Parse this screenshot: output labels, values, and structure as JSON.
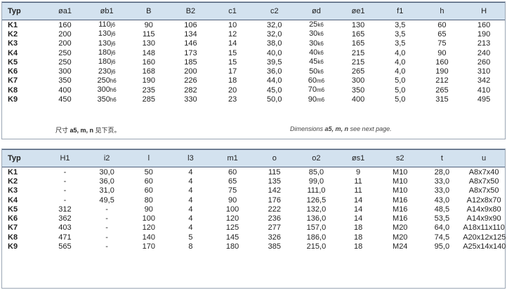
{
  "table1": {
    "headers": [
      "Typ",
      "øa1",
      "øb1",
      "B",
      "B2",
      "c1",
      "c2",
      "ød",
      "øe1",
      "f1",
      "h",
      "H"
    ],
    "rows": [
      {
        "type": "K1",
        "cells": [
          "160",
          {
            "main": "110",
            "sub": "j6"
          },
          "90",
          "106",
          "10",
          "32,0",
          {
            "main": "25",
            "sub": "k6"
          },
          "130",
          "3,5",
          "60",
          "160"
        ]
      },
      {
        "type": "K2",
        "cells": [
          "200",
          {
            "main": "130",
            "sub": "j6"
          },
          "115",
          "134",
          "12",
          "32,0",
          {
            "main": "30",
            "sub": "k6"
          },
          "165",
          "3,5",
          "65",
          "190"
        ]
      },
      {
        "type": "K3",
        "cells": [
          "200",
          {
            "main": "130",
            "sub": "j6"
          },
          "130",
          "146",
          "14",
          "38,0",
          {
            "main": "30",
            "sub": "k6"
          },
          "165",
          "3,5",
          "75",
          "213"
        ]
      },
      {
        "type": "K4",
        "cells": [
          "250",
          {
            "main": "180",
            "sub": "j6"
          },
          "148",
          "173",
          "15",
          "40,0",
          {
            "main": "40",
            "sub": "k6"
          },
          "215",
          "4,0",
          "90",
          "240"
        ]
      },
      {
        "type": "K5",
        "cells": [
          "250",
          {
            "main": "180",
            "sub": "j6"
          },
          "160",
          "185",
          "15",
          "39,5",
          {
            "main": "45",
            "sub": "k6"
          },
          "215",
          "4,0",
          "160",
          "260"
        ]
      },
      {
        "type": "K6",
        "cells": [
          "300",
          {
            "main": "230",
            "sub": "j6"
          },
          "168",
          "200",
          "17",
          "36,0",
          {
            "main": "50",
            "sub": "k6"
          },
          "265",
          "4,0",
          "190",
          "310"
        ]
      },
      {
        "type": "K7",
        "cells": [
          "350",
          {
            "main": "250",
            "sub": "h6"
          },
          "190",
          "226",
          "18",
          "44,0",
          {
            "main": "60",
            "sub": "m6"
          },
          "300",
          "5,0",
          "212",
          "342"
        ]
      },
      {
        "type": "K8",
        "cells": [
          "400",
          {
            "main": "300",
            "sub": "h6"
          },
          "235",
          "282",
          "20",
          "45,0",
          {
            "main": "70",
            "sub": "m6"
          },
          "350",
          "5,0",
          "265",
          "410"
        ]
      },
      {
        "type": "K9",
        "cells": [
          "450",
          {
            "main": "350",
            "sub": "h6"
          },
          "285",
          "330",
          "23",
          "50,0",
          {
            "main": "90",
            "sub": "m6"
          },
          "400",
          "5,0",
          "315",
          "495"
        ]
      }
    ],
    "note_cn": [
      {
        "text": "尺寸 "
      },
      {
        "text": "a5, m, n",
        "bold": true
      },
      {
        "text": " 见下页。"
      }
    ],
    "note_en": [
      {
        "text": "Dimensions "
      },
      {
        "text": "a5, m, n",
        "bold": true
      },
      {
        "text": " see next page."
      }
    ]
  },
  "table2": {
    "headers": [
      "Typ",
      "H1",
      "i2",
      "l",
      "l3",
      "m1",
      "o",
      "o2",
      "øs1",
      "s2",
      "t",
      "u"
    ],
    "rows": [
      {
        "type": "K1",
        "cells": [
          "-",
          "30,0",
          "50",
          "4",
          "60",
          "115",
          "85,0",
          "9",
          "M10",
          "28,0",
          "A8x7x40"
        ]
      },
      {
        "type": "K2",
        "cells": [
          "-",
          "36,0",
          "60",
          "4",
          "65",
          "135",
          "99,0",
          "11",
          "M10",
          "33,0",
          "A8x7x50"
        ]
      },
      {
        "type": "K3",
        "cells": [
          "-",
          "31,0",
          "60",
          "4",
          "75",
          "142",
          "111,0",
          "11",
          "M10",
          "33,0",
          "A8x7x50"
        ]
      },
      {
        "type": "K4",
        "cells": [
          "-",
          "49,5",
          "80",
          "4",
          "90",
          "176",
          "126,5",
          "14",
          "M16",
          "43,0",
          "A12x8x70"
        ]
      },
      {
        "type": "K5",
        "cells": [
          "312",
          "-",
          "90",
          "4",
          "100",
          "222",
          "132,0",
          "14",
          "M16",
          "48,5",
          "A14x9x80"
        ]
      },
      {
        "type": "K6",
        "cells": [
          "362",
          "-",
          "100",
          "4",
          "120",
          "236",
          "136,0",
          "14",
          "M16",
          "53,5",
          "A14x9x90"
        ]
      },
      {
        "type": "K7",
        "cells": [
          "403",
          "-",
          "120",
          "4",
          "125",
          "277",
          "157,0",
          "18",
          "M20",
          "64,0",
          "A18x11x110"
        ]
      },
      {
        "type": "K8",
        "cells": [
          "471",
          "-",
          "140",
          "5",
          "145",
          "326",
          "186,0",
          "18",
          "M20",
          "74,5",
          "A20x12x125"
        ]
      },
      {
        "type": "K9",
        "cells": [
          "565",
          "-",
          "170",
          "8",
          "180",
          "385",
          "215,0",
          "18",
          "M24",
          "95,0",
          "A25x14x140"
        ]
      }
    ]
  }
}
